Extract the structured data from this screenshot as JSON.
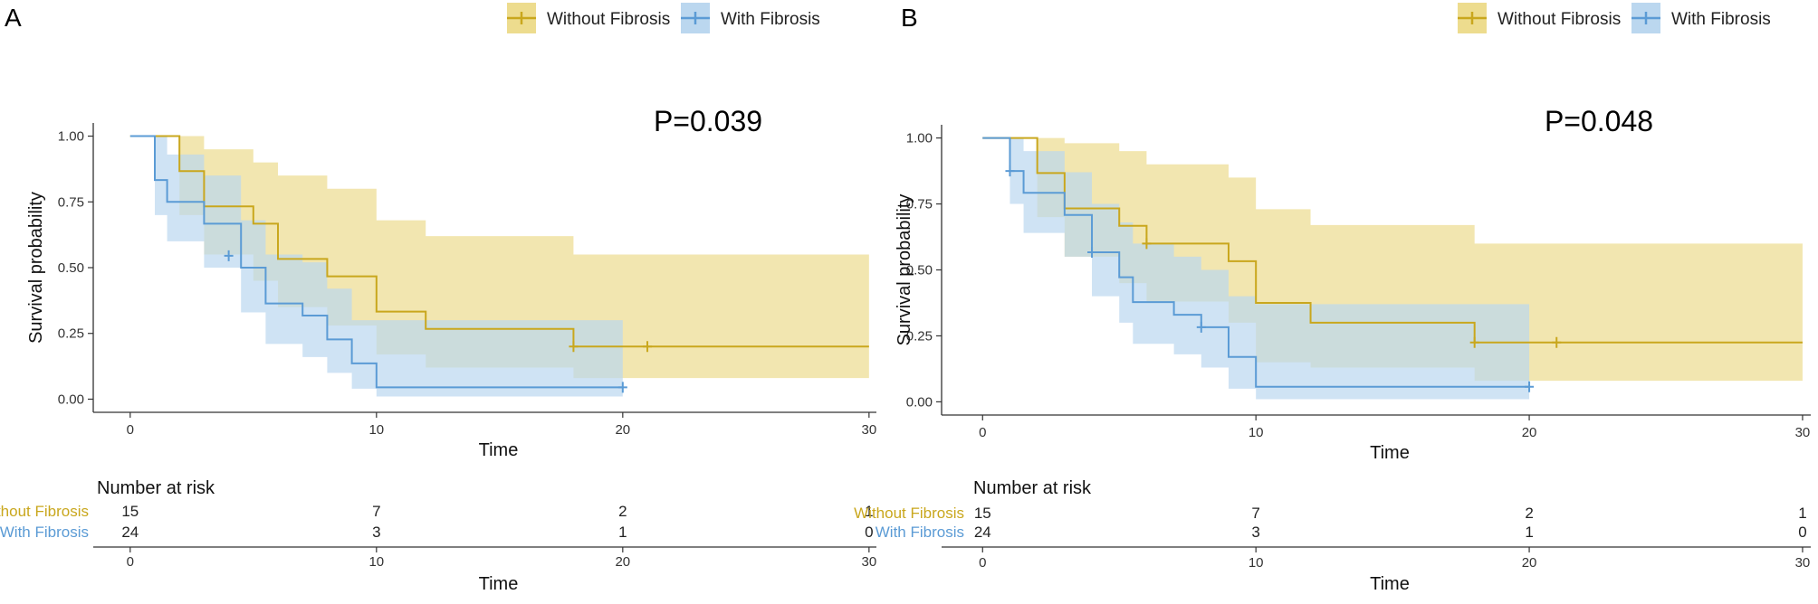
{
  "chart_data": [
    {
      "type": "kaplan-meier",
      "panel_label": "A",
      "p_value": "P=0.039",
      "xlabel": "Time",
      "ylabel": "Survival probability",
      "xlim": [
        -1.5,
        30.3
      ],
      "ylim": [
        -0.05,
        1.05
      ],
      "xticks": [
        0,
        10,
        20,
        30
      ],
      "yticks": [
        0,
        0.25,
        0.5,
        0.75,
        1
      ],
      "ytick_labels": [
        "0.00",
        "0.25",
        "0.50",
        "0.75",
        "1.00"
      ],
      "legend": [
        "Without Fibrosis",
        "With Fibrosis"
      ],
      "series": [
        {
          "name": "Without Fibrosis",
          "color": "#C9A71D",
          "fill": "#EDDC8E",
          "steps": [
            [
              0,
              1
            ],
            [
              2,
              0.867
            ],
            [
              3,
              0.733
            ],
            [
              5,
              0.667
            ],
            [
              6,
              0.533
            ],
            [
              8,
              0.467
            ],
            [
              10,
              0.333
            ],
            [
              12,
              0.267
            ],
            [
              18,
              0.2
            ],
            [
              30,
              0.2
            ]
          ],
          "band": [
            [
              0,
              1,
              1
            ],
            [
              2,
              1,
              0.7
            ],
            [
              3,
              0.95,
              0.55
            ],
            [
              5,
              0.9,
              0.45
            ],
            [
              6,
              0.85,
              0.35
            ],
            [
              8,
              0.8,
              0.28
            ],
            [
              10,
              0.68,
              0.17
            ],
            [
              12,
              0.62,
              0.12
            ],
            [
              18,
              0.55,
              0.08
            ],
            [
              30,
              0.55,
              0.08
            ]
          ],
          "censor": [
            [
              18,
              0.2
            ],
            [
              21,
              0.2
            ]
          ]
        },
        {
          "name": "With Fibrosis",
          "color": "#5B9BD5",
          "fill": "#BBD7EF",
          "steps": [
            [
              0,
              1
            ],
            [
              1,
              0.833
            ],
            [
              1.5,
              0.75
            ],
            [
              3,
              0.667
            ],
            [
              4.5,
              0.5
            ],
            [
              5.5,
              0.364
            ],
            [
              7,
              0.318
            ],
            [
              8,
              0.227
            ],
            [
              9,
              0.136
            ],
            [
              10,
              0.045
            ],
            [
              20,
              0.045
            ]
          ],
          "band": [
            [
              0,
              1,
              1
            ],
            [
              1,
              1,
              0.7
            ],
            [
              1.5,
              0.93,
              0.6
            ],
            [
              3,
              0.85,
              0.5
            ],
            [
              4.5,
              0.68,
              0.33
            ],
            [
              5.5,
              0.55,
              0.21
            ],
            [
              7,
              0.52,
              0.16
            ],
            [
              8,
              0.42,
              0.1
            ],
            [
              9,
              0.3,
              0.04
            ],
            [
              10,
              0.3,
              0.01
            ],
            [
              20,
              0.3,
              0.01
            ]
          ],
          "censor": [
            [
              4,
              0.545
            ],
            [
              20,
              0.045
            ]
          ]
        }
      ],
      "risk_table": {
        "title": "Number at risk",
        "xlabel": "Time",
        "times": [
          0,
          10,
          20,
          30
        ],
        "rows": [
          {
            "name": "Without Fibrosis",
            "color": "#C9A71D",
            "values": [
              15,
              7,
              2,
              1
            ]
          },
          {
            "name": "With Fibrosis",
            "color": "#5B9BD5",
            "values": [
              24,
              3,
              1,
              0
            ]
          }
        ]
      }
    },
    {
      "type": "kaplan-meier",
      "panel_label": "B",
      "p_value": "P=0.048",
      "xlabel": "Time",
      "ylabel": "Survival probability",
      "xlim": [
        -1.5,
        30.3
      ],
      "ylim": [
        -0.05,
        1.05
      ],
      "xticks": [
        0,
        10,
        20,
        30
      ],
      "yticks": [
        0,
        0.25,
        0.5,
        0.75,
        1
      ],
      "ytick_labels": [
        "0.00",
        "0.25",
        "0.50",
        "0.75",
        "1.00"
      ],
      "legend": [
        "Without Fibrosis",
        "With Fibrosis"
      ],
      "series": [
        {
          "name": "Without Fibrosis",
          "color": "#C9A71D",
          "fill": "#EDDC8E",
          "steps": [
            [
              0,
              1
            ],
            [
              2,
              0.867
            ],
            [
              3,
              0.733
            ],
            [
              5,
              0.667
            ],
            [
              6,
              0.6
            ],
            [
              9,
              0.533
            ],
            [
              10,
              0.375
            ],
            [
              12,
              0.3
            ],
            [
              18,
              0.225
            ],
            [
              30,
              0.225
            ]
          ],
          "band": [
            [
              0,
              1,
              1
            ],
            [
              2,
              1,
              0.7
            ],
            [
              3,
              0.98,
              0.55
            ],
            [
              5,
              0.95,
              0.45
            ],
            [
              6,
              0.9,
              0.38
            ],
            [
              9,
              0.85,
              0.3
            ],
            [
              10,
              0.73,
              0.15
            ],
            [
              12,
              0.67,
              0.13
            ],
            [
              18,
              0.6,
              0.08
            ],
            [
              30,
              0.6,
              0.08
            ]
          ],
          "censor": [
            [
              6,
              0.6
            ],
            [
              18,
              0.225
            ],
            [
              21,
              0.225
            ]
          ]
        },
        {
          "name": "With Fibrosis",
          "color": "#5B9BD5",
          "fill": "#BBD7EF",
          "steps": [
            [
              0,
              1
            ],
            [
              1,
              0.875
            ],
            [
              1.5,
              0.792
            ],
            [
              3,
              0.708
            ],
            [
              4,
              0.567
            ],
            [
              5,
              0.472
            ],
            [
              5.5,
              0.378
            ],
            [
              7,
              0.33
            ],
            [
              8,
              0.283
            ],
            [
              9,
              0.17
            ],
            [
              10,
              0.057
            ],
            [
              20,
              0.057
            ]
          ],
          "band": [
            [
              0,
              1,
              1
            ],
            [
              1,
              1,
              0.75
            ],
            [
              1.5,
              0.95,
              0.64
            ],
            [
              3,
              0.87,
              0.55
            ],
            [
              4,
              0.75,
              0.4
            ],
            [
              5,
              0.68,
              0.3
            ],
            [
              5.5,
              0.6,
              0.22
            ],
            [
              7,
              0.55,
              0.18
            ],
            [
              8,
              0.5,
              0.13
            ],
            [
              9,
              0.4,
              0.05
            ],
            [
              10,
              0.37,
              0.01
            ],
            [
              20,
              0.37,
              0.01
            ]
          ],
          "censor": [
            [
              1,
              0.875
            ],
            [
              4,
              0.567
            ],
            [
              8,
              0.283
            ],
            [
              20,
              0.057
            ]
          ]
        }
      ],
      "risk_table": {
        "title": "Number at risk",
        "xlabel": "Time",
        "times": [
          0,
          10,
          20,
          30
        ],
        "rows": [
          {
            "name": "Without Fibrosis",
            "color": "#C9A71D",
            "values": [
              15,
              7,
              2,
              1
            ]
          },
          {
            "name": "With Fibrosis",
            "color": "#5B9BD5",
            "values": [
              24,
              3,
              1,
              0
            ]
          }
        ]
      }
    }
  ]
}
